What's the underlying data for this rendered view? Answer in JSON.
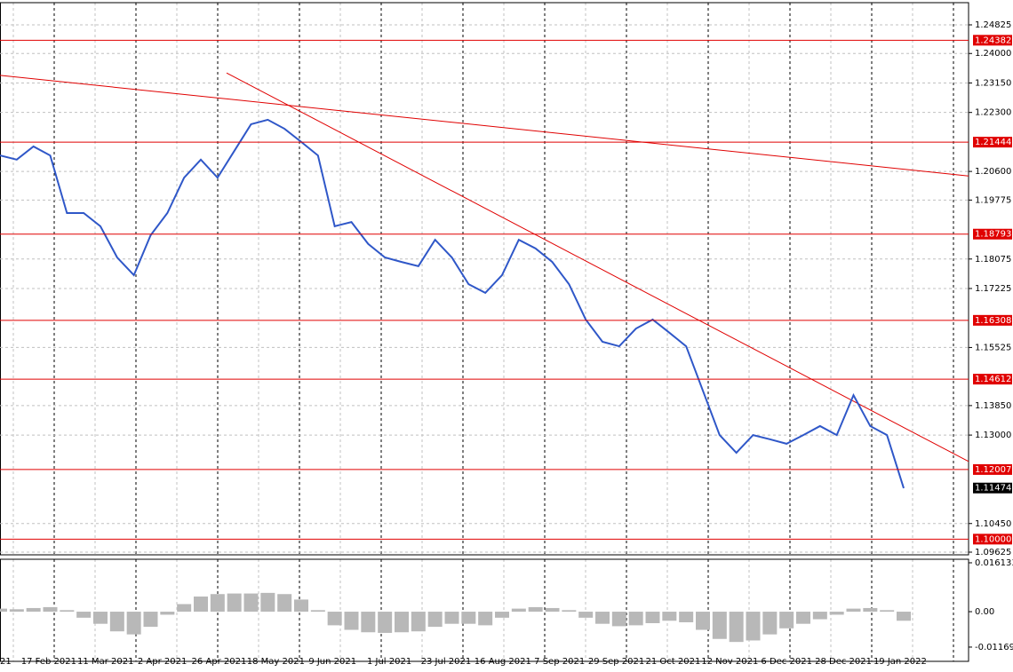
{
  "chart_data": [
    {
      "type": "line",
      "date_labels": [
        "21",
        "17 Feb 2021",
        "11 Mar 2021",
        "2 Apr 2021",
        "26 Apr 2021",
        "18 May 2021",
        "9 Jun 2021",
        "1 Jul 2021",
        "23 Jul 2021",
        "16 Aug 2021",
        "7 Sep 2021",
        "29 Sep 2021",
        "21 Oct 2021",
        "12 Nov 2021",
        "6 Dec 2021",
        "28 Dec 2021",
        "19 Jan 2022"
      ],
      "series": [
        {
          "color": "#2f57c8",
          "values": [
            1.2106,
            1.2094,
            1.2132,
            1.2106,
            1.194,
            1.194,
            1.1902,
            1.1812,
            1.1761,
            1.1876,
            1.194,
            1.2042,
            1.2094,
            1.2042,
            1.2119,
            1.2196,
            1.2209,
            1.2183,
            1.2145,
            1.2106,
            1.1902,
            1.1914,
            1.1851,
            1.1812,
            1.1799,
            1.1787,
            1.1863,
            1.1812,
            1.1735,
            1.171,
            1.1761,
            1.1863,
            1.1838,
            1.1799,
            1.1735,
            1.1633,
            1.1569,
            1.1556,
            1.1607,
            1.1633,
            1.1595,
            1.1556,
            1.1428,
            1.13,
            1.1249,
            1.13,
            1.1288,
            1.1275,
            1.13,
            1.1326,
            1.13,
            1.1415,
            1.1326,
            1.13,
            1.1147
          ]
        }
      ],
      "ylim": [
        1.09548,
        1.25465
      ],
      "yticks": [
        1.24825,
        {
          "value": 1.24,
          "label": "1.24000"
        },
        {
          "value": 1.2315,
          "label": "1.23150"
        },
        {
          "value": 1.223,
          "label": "1.22300"
        },
        {
          "value": 1.206,
          "label": "1.20600"
        },
        1.19775,
        1.18075,
        1.17225,
        1.15525,
        {
          "value": 1.1385,
          "label": "1.13850"
        },
        {
          "value": 1.13,
          "label": "1.13000"
        },
        {
          "value": 1.1045,
          "label": "1.10450"
        },
        1.09625
      ],
      "levels": [
        1.24382,
        1.21444,
        1.18793,
        1.16308,
        1.14612,
        1.12007,
        {
          "value": 1.1,
          "label": "1.10000"
        }
      ],
      "level_color": "#e00000",
      "current_price": 1.11474,
      "trendlines": [
        {
          "start": 1.2337,
          "end": 1.2047
        },
        {
          "start": 1.2344,
          "end": 1.1224
        }
      ],
      "grid": true
    },
    {
      "type": "histogram",
      "values": [
        0.001,
        0.0008,
        0.0012,
        0.0015,
        0.0005,
        -0.002,
        -0.004,
        -0.0065,
        -0.0075,
        -0.005,
        -0.001,
        0.0025,
        0.005,
        0.0058,
        0.006,
        0.006,
        0.0062,
        0.0058,
        0.004,
        0.0005,
        -0.0045,
        -0.006,
        -0.0068,
        -0.007,
        -0.0068,
        -0.0065,
        -0.005,
        -0.004,
        -0.004,
        -0.0045,
        -0.002,
        0.001,
        0.0015,
        0.0012,
        0.0005,
        -0.002,
        -0.004,
        -0.0048,
        -0.0045,
        -0.0038,
        -0.003,
        -0.0035,
        -0.006,
        -0.009,
        -0.01,
        -0.0095,
        -0.0075,
        -0.0055,
        -0.004,
        -0.0025,
        -0.001,
        0.001,
        0.0012,
        0.0005,
        -0.003
      ],
      "color": "#b8b8b8",
      "ylim": [
        -0.0164,
        0.0173
      ],
      "yticks": [
        0.016133,
        {
          "value": 0,
          "label": "0.00"
        },
        -0.011696
      ]
    }
  ]
}
